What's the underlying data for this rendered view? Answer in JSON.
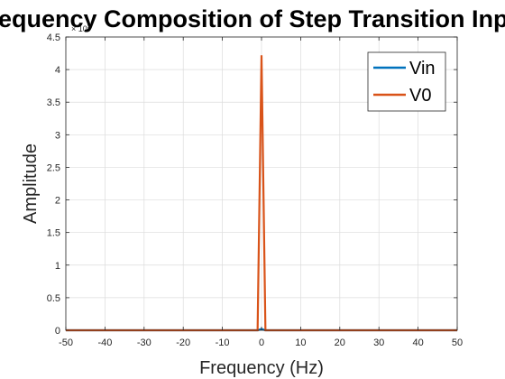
{
  "chart_data": {
    "type": "line",
    "title": "Frequency Composition of Step Transition Input",
    "xlabel": "Frequency (Hz)",
    "ylabel": "Amplitude",
    "xlim": [
      -50,
      50
    ],
    "ylim": [
      0,
      4.5
    ],
    "x_ticks": [
      -50,
      -40,
      -30,
      -20,
      -10,
      0,
      10,
      20,
      30,
      40,
      50
    ],
    "y_ticks": [
      0,
      0.5,
      1,
      1.5,
      2,
      2.5,
      3,
      3.5,
      4,
      4.5
    ],
    "y_tick_labels": [
      "0",
      "0.5",
      "1",
      "1.5",
      "2",
      "2.5",
      "3",
      "3.5",
      "4",
      "4.5"
    ],
    "y_exponent_label": "× 10^5",
    "y_exponent_base": "× 10",
    "y_exponent_power": "5",
    "grid": true,
    "legend_position": "top-right",
    "series": [
      {
        "name": "Vin",
        "color": "#0072BD",
        "x": [
          -50,
          -1,
          0,
          1,
          50
        ],
        "y": [
          0,
          0,
          0.02,
          0,
          0
        ]
      },
      {
        "name": "V0",
        "color": "#D95319",
        "x": [
          -50,
          -1,
          0,
          1,
          50
        ],
        "y": [
          0,
          0,
          4.22,
          0,
          0
        ]
      }
    ]
  }
}
